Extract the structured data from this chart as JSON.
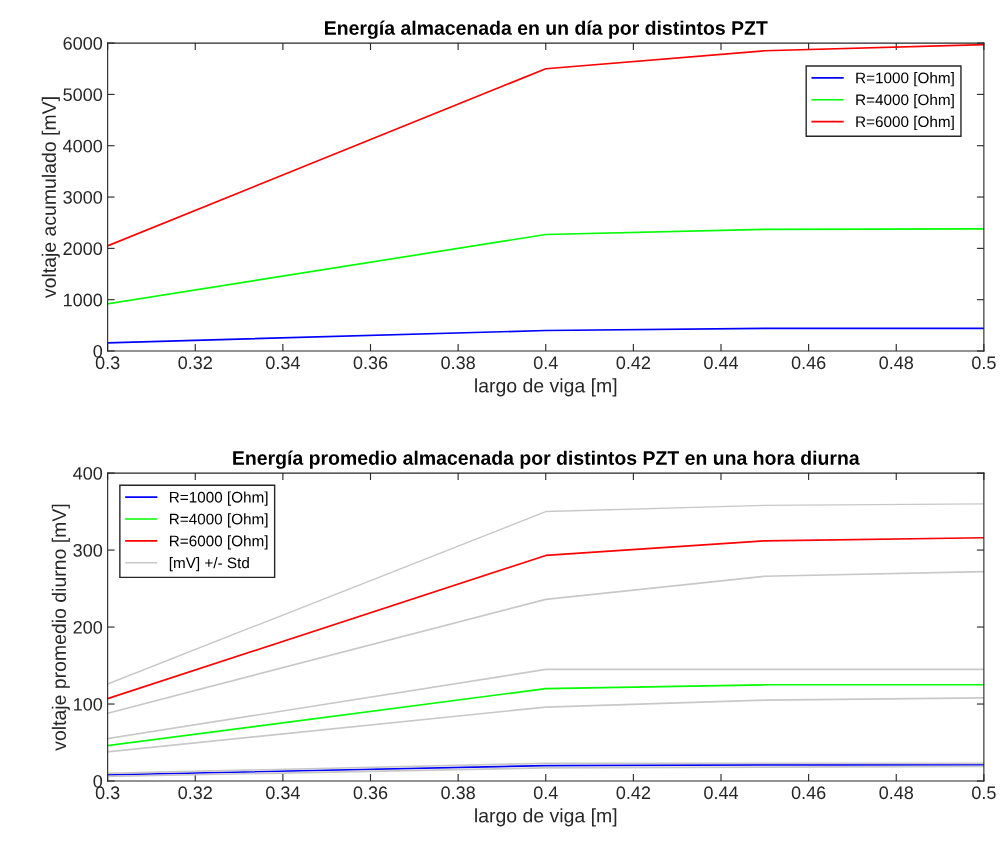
{
  "chart_data": [
    {
      "type": "line",
      "title": "Energía almacenada en un día por distintos PZT",
      "xlabel": "largo de viga [m]",
      "ylabel": "voltaje acumulado [mV]",
      "x": [
        0.3,
        0.4,
        0.45,
        0.5
      ],
      "series": [
        {
          "name": "R=1000 [Ohm]",
          "color": "#0000ff",
          "values": [
            160,
            400,
            440,
            440
          ]
        },
        {
          "name": "R=4000 [Ohm]",
          "color": "#00ff00",
          "values": [
            920,
            2270,
            2370,
            2380
          ]
        },
        {
          "name": "R=6000 [Ohm]",
          "color": "#ff0000",
          "values": [
            2050,
            5500,
            5850,
            5970
          ]
        }
      ],
      "xlim": [
        0.3,
        0.5
      ],
      "xticks": [
        0.3,
        0.32,
        0.34,
        0.36,
        0.38,
        0.4,
        0.42,
        0.44,
        0.46,
        0.48,
        0.5
      ],
      "ylim": [
        0,
        6000
      ],
      "yticks": [
        0,
        1000,
        2000,
        3000,
        4000,
        5000,
        6000
      ],
      "grid": false,
      "legend": "top right",
      "marker": "none",
      "line_style": "solid"
    },
    {
      "type": "line",
      "title": "Energía promedio almacenada por distintos PZT en una hora diurna",
      "xlabel": "largo de viga [m]",
      "ylabel": "voltaje promedio diurno [mV]",
      "x": [
        0.3,
        0.4,
        0.45,
        0.5
      ],
      "series": [
        {
          "name": "R=1000 [Ohm]",
          "color": "#0000ff",
          "values": [
            8,
            20,
            21,
            21
          ]
        },
        {
          "name": "R=4000 [Ohm]",
          "color": "#00ff00",
          "values": [
            46,
            120,
            125,
            125
          ]
        },
        {
          "name": "R=6000 [Ohm]",
          "color": "#ff0000",
          "values": [
            107,
            293,
            312,
            316
          ]
        },
        {
          "name": "[mV] +/- Std",
          "color": "#c8c8c8",
          "values": [
            126,
            350,
            358,
            360
          ]
        },
        {
          "color": "#c8c8c8",
          "values": [
            88,
            236,
            266,
            272
          ]
        },
        {
          "color": "#c8c8c8",
          "values": [
            55,
            145,
            145,
            145
          ]
        },
        {
          "color": "#c8c8c8",
          "values": [
            38,
            96,
            105,
            108
          ]
        },
        {
          "color": "#c8c8c8",
          "values": [
            10,
            23,
            23,
            23
          ]
        },
        {
          "color": "#c8c8c8",
          "values": [
            6,
            17,
            18,
            19
          ]
        }
      ],
      "xlim": [
        0.3,
        0.5
      ],
      "xticks": [
        0.3,
        0.32,
        0.34,
        0.36,
        0.38,
        0.4,
        0.42,
        0.44,
        0.46,
        0.48,
        0.5
      ],
      "ylim": [
        0,
        400
      ],
      "yticks": [
        0,
        100,
        200,
        300,
        400
      ],
      "grid": false,
      "legend": "top left",
      "marker": "none",
      "line_style": "solid"
    }
  ]
}
